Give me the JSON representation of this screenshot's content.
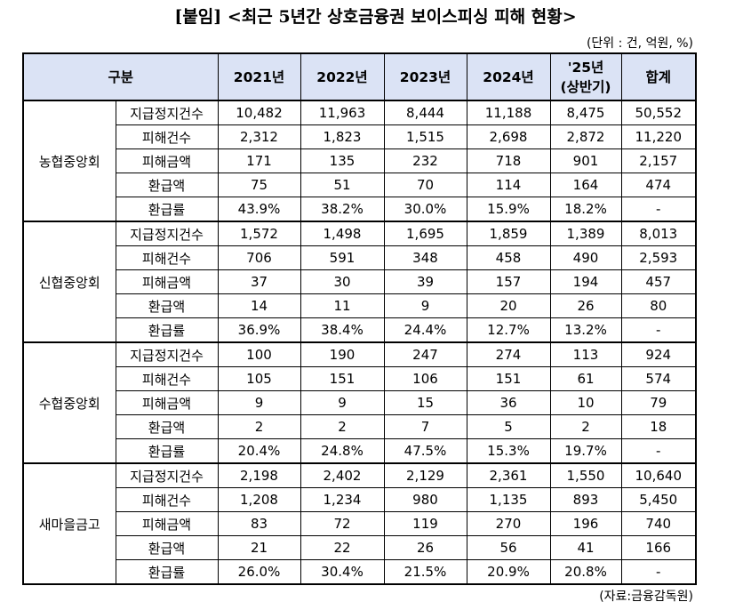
{
  "title": "[붙임] <최근 5년간 상호금융권 보이스피싱 피해 현황>",
  "unit": "(단위 : 건, 억원, %)",
  "source": "(자료:금융감독원)",
  "header": {
    "category": "구분",
    "columns": [
      "2021년",
      "2022년",
      "2023년",
      "2024년",
      "'25년",
      "합계"
    ],
    "col5_sub": "(상반기)"
  },
  "groups": [
    {
      "name": "농협중앙회",
      "rows": [
        {
          "label": "지급정지건수",
          "values": [
            "10,482",
            "11,963",
            "8,444",
            "11,188",
            "8,475",
            "50,552"
          ]
        },
        {
          "label": "피해건수",
          "values": [
            "2,312",
            "1,823",
            "1,515",
            "2,698",
            "2,872",
            "11,220"
          ]
        },
        {
          "label": "피해금액",
          "values": [
            "171",
            "135",
            "232",
            "718",
            "901",
            "2,157"
          ]
        },
        {
          "label": "환급액",
          "values": [
            "75",
            "51",
            "70",
            "114",
            "164",
            "474"
          ]
        },
        {
          "label": "환급률",
          "values": [
            "43.9%",
            "38.2%",
            "30.0%",
            "15.9%",
            "18.2%",
            "-"
          ]
        }
      ]
    },
    {
      "name": "신협중앙회",
      "rows": [
        {
          "label": "지급정지건수",
          "values": [
            "1,572",
            "1,498",
            "1,695",
            "1,859",
            "1,389",
            "8,013"
          ]
        },
        {
          "label": "피해건수",
          "values": [
            "706",
            "591",
            "348",
            "458",
            "490",
            "2,593"
          ]
        },
        {
          "label": "피해금액",
          "values": [
            "37",
            "30",
            "39",
            "157",
            "194",
            "457"
          ]
        },
        {
          "label": "환급액",
          "values": [
            "14",
            "11",
            "9",
            "20",
            "26",
            "80"
          ]
        },
        {
          "label": "환급률",
          "values": [
            "36.9%",
            "38.4%",
            "24.4%",
            "12.7%",
            "13.2%",
            "-"
          ]
        }
      ]
    },
    {
      "name": "수협중앙회",
      "rows": [
        {
          "label": "지급정지건수",
          "values": [
            "100",
            "190",
            "247",
            "274",
            "113",
            "924"
          ]
        },
        {
          "label": "피해건수",
          "values": [
            "105",
            "151",
            "106",
            "151",
            "61",
            "574"
          ]
        },
        {
          "label": "피해금액",
          "values": [
            "9",
            "9",
            "15",
            "36",
            "10",
            "79"
          ]
        },
        {
          "label": "환급액",
          "values": [
            "2",
            "2",
            "7",
            "5",
            "2",
            "18"
          ]
        },
        {
          "label": "환급률",
          "values": [
            "20.4%",
            "24.8%",
            "47.5%",
            "15.3%",
            "19.7%",
            "-"
          ]
        }
      ]
    },
    {
      "name": "새마을금고",
      "rows": [
        {
          "label": "지급정지건수",
          "values": [
            "2,198",
            "2,402",
            "2,129",
            "2,361",
            "1,550",
            "10,640"
          ]
        },
        {
          "label": "피해건수",
          "values": [
            "1,208",
            "1,234",
            "980",
            "1,135",
            "893",
            "5,450"
          ]
        },
        {
          "label": "피해금액",
          "values": [
            "83",
            "72",
            "119",
            "270",
            "196",
            "740"
          ]
        },
        {
          "label": "환급액",
          "values": [
            "21",
            "22",
            "26",
            "56",
            "41",
            "166"
          ]
        },
        {
          "label": "환급률",
          "values": [
            "26.0%",
            "30.4%",
            "21.5%",
            "20.9%",
            "20.8%",
            "-"
          ]
        }
      ]
    }
  ],
  "colors": {
    "header_bg": "#dbe3f5",
    "border": "#000000"
  }
}
